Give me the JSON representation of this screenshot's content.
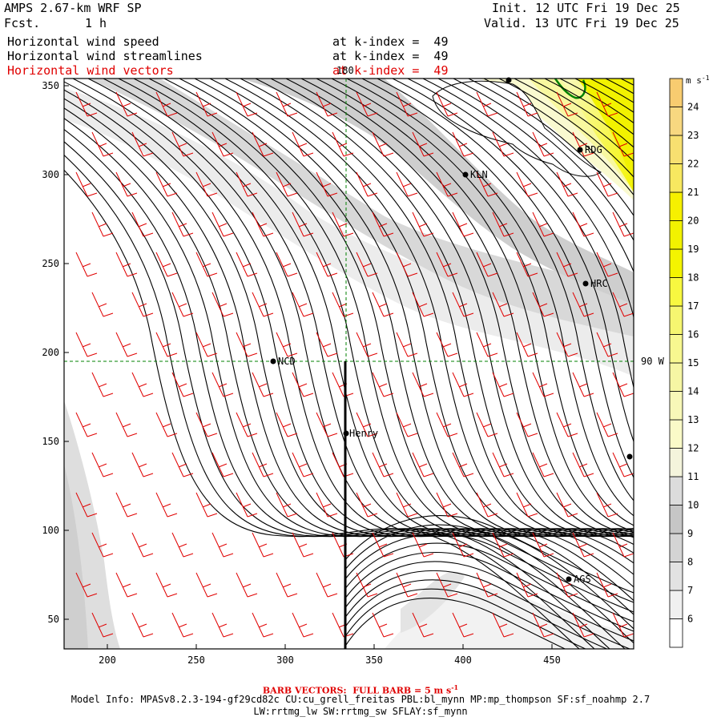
{
  "header": {
    "model": "AMPS 2.67-km WRF SP",
    "fcst_label": "Fcst.",
    "fcst_value": "1 h",
    "init": "Init. 12 UTC Fri 19 Dec 25",
    "valid": "Valid. 13 UTC Fri 19 Dec 25",
    "fields": [
      {
        "name": "Horizontal wind speed",
        "level": "at k-index =  49",
        "color": "#000000"
      },
      {
        "name": "Horizontal wind streamlines",
        "level": "at k-index =  49",
        "color": "#000000"
      },
      {
        "name": "Horizontal wind vectors",
        "level": "at k-index =  49",
        "color": "#e00000"
      }
    ]
  },
  "map": {
    "x_ticks": [
      "200",
      "250",
      "300",
      "350",
      "400",
      "450"
    ],
    "y_ticks": [
      "50",
      "100",
      "150",
      "200",
      "250",
      "300",
      "350"
    ],
    "meridian_label": "180",
    "parallel_label": "90 W",
    "stations": [
      {
        "name": "NCD"
      },
      {
        "name": "Henry"
      },
      {
        "name": "KLN"
      },
      {
        "name": "RDG"
      },
      {
        "name": "HRC"
      },
      {
        "name": "AGS"
      }
    ]
  },
  "colorbar": {
    "unit": "m s",
    "unit_exp": "-1",
    "labels": [
      "6",
      "7",
      "8",
      "9",
      "10",
      "11",
      "12",
      "13",
      "14",
      "15",
      "16",
      "17",
      "18",
      "19",
      "20",
      "21",
      "22",
      "23",
      "24"
    ],
    "colors": [
      "#ffffff",
      "#f0f0f0",
      "#e2e2e2",
      "#d4d4d4",
      "#c6c6c6",
      "#dcdcdc",
      "#f4f4dc",
      "#fafac8",
      "#f8f8b8",
      "#f6f6a4",
      "#f8f890",
      "#f6f670",
      "#f8f840",
      "#f4f400",
      "#f2f200",
      "#f6f000",
      "#f8e860",
      "#f8e070",
      "#f8d880",
      "#f8cc70"
    ]
  },
  "footer": {
    "barb": "BARB VECTORS:  FULL BARB = 5 m s",
    "barb_exp": "-1",
    "model_info": "Model Info: MPASv8.2.3-194-gf29cd82c CU:cu_grell_freitas PBL:bl_mynn MP:mp_thompson SF:sf_noahmp 2.7",
    "model_info2": "LW:rrtmg_lw SW:rrtmg_sw SFLAY:sf_mynn"
  }
}
